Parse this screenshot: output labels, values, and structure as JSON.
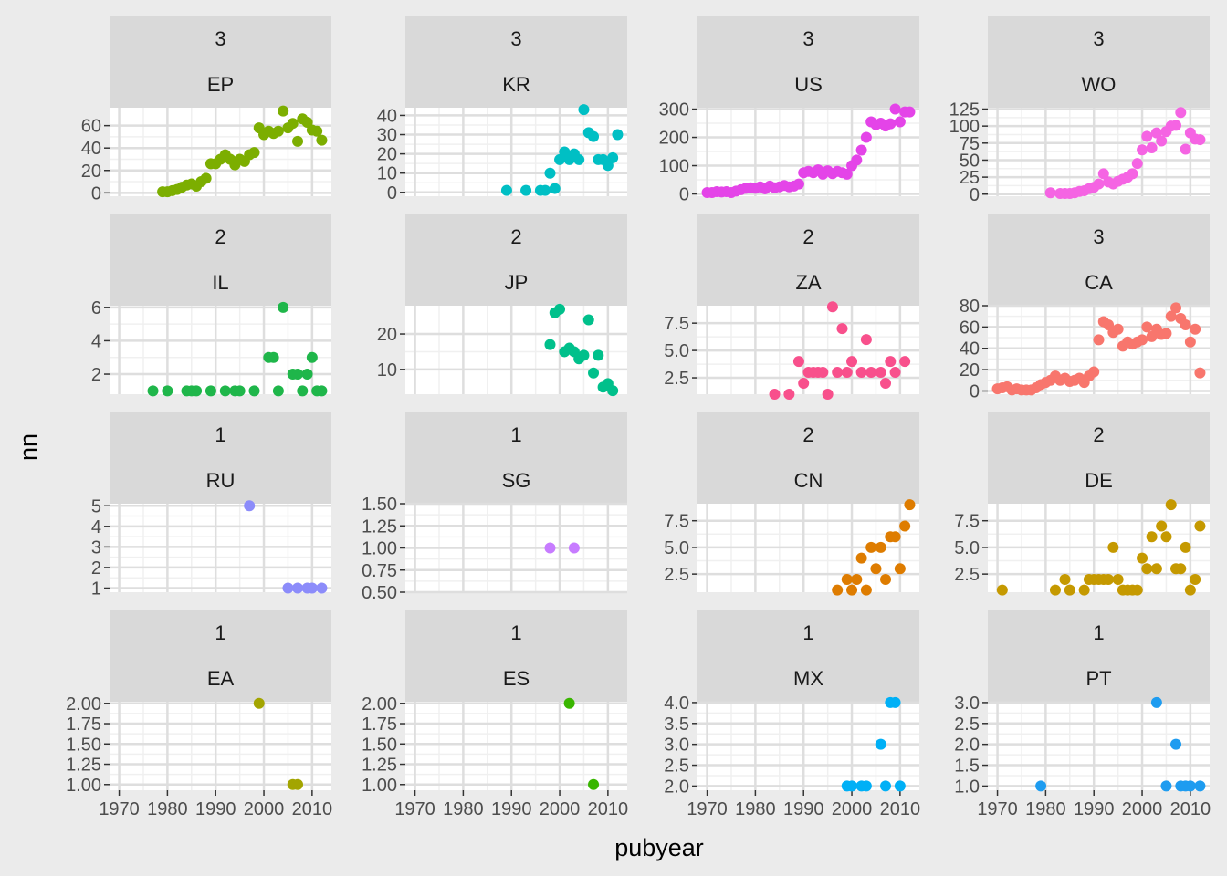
{
  "chart_data": {
    "type": "scatter",
    "xlabel": "pubyear",
    "ylabel": "nn",
    "x_ticks": [
      1970,
      1980,
      1990,
      2000,
      2010
    ],
    "xlim": [
      1968,
      2014
    ],
    "grid": true,
    "legend": "none",
    "panels": [
      {
        "strip_top": "3",
        "strip_bottom": "EP",
        "color": "#7cae00",
        "ylim": [
          -3,
          76
        ],
        "y_ticks": [
          0,
          20,
          40,
          60
        ],
        "y_tick_labels": [
          "0",
          "20",
          "40",
          "60"
        ],
        "x": [
          1979,
          1980,
          1981,
          1982,
          1983,
          1984,
          1985,
          1986,
          1987,
          1988,
          1989,
          1990,
          1991,
          1992,
          1993,
          1994,
          1995,
          1996,
          1997,
          1998,
          1999,
          2000,
          2001,
          2002,
          2003,
          2004,
          2005,
          2006,
          2007,
          2008,
          2009,
          2010,
          2011,
          2012
        ],
        "y": [
          1,
          1,
          2,
          3,
          5,
          7,
          8,
          6,
          10,
          13,
          26,
          26,
          30,
          34,
          30,
          25,
          30,
          28,
          34,
          36,
          58,
          52,
          55,
          53,
          55,
          73,
          58,
          62,
          46,
          66,
          63,
          56,
          55,
          47
        ]
      },
      {
        "strip_top": "3",
        "strip_bottom": "KR",
        "color": "#00bfc4",
        "ylim": [
          -2,
          44
        ],
        "y_ticks": [
          0,
          10,
          20,
          30,
          40
        ],
        "y_tick_labels": [
          "0",
          "10",
          "20",
          "30",
          "40"
        ],
        "x": [
          1989,
          1993,
          1996,
          1997,
          1998,
          1999,
          2000,
          2001,
          2002,
          2003,
          2004,
          2005,
          2006,
          2007,
          2008,
          2009,
          2010,
          2011,
          2012
        ],
        "y": [
          1,
          1,
          1,
          1,
          10,
          2,
          17,
          21,
          17,
          20,
          17,
          43,
          31,
          29,
          17,
          17,
          14,
          18,
          30
        ]
      },
      {
        "strip_top": "3",
        "strip_bottom": "US",
        "color": "#e444e8",
        "ylim": [
          -8,
          305
        ],
        "y_ticks": [
          0,
          100,
          200,
          300
        ],
        "y_tick_labels": [
          "0",
          "100",
          "200",
          "300"
        ],
        "x": [
          1970,
          1971,
          1972,
          1973,
          1974,
          1975,
          1976,
          1977,
          1978,
          1979,
          1980,
          1981,
          1982,
          1983,
          1984,
          1985,
          1986,
          1987,
          1988,
          1989,
          1990,
          1991,
          1992,
          1993,
          1994,
          1995,
          1996,
          1997,
          1998,
          1999,
          2000,
          2001,
          2002,
          2003,
          2004,
          2005,
          2006,
          2007,
          2008,
          2009,
          2010,
          2011,
          2012
        ],
        "y": [
          5,
          5,
          8,
          7,
          8,
          5,
          10,
          15,
          20,
          22,
          20,
          25,
          18,
          28,
          22,
          25,
          30,
          25,
          28,
          35,
          75,
          80,
          75,
          85,
          70,
          82,
          72,
          80,
          75,
          70,
          100,
          120,
          155,
          200,
          255,
          245,
          250,
          240,
          248,
          300,
          255,
          290,
          290
        ]
      },
      {
        "strip_top": "3",
        "strip_bottom": "WO",
        "color": "#f564e3",
        "ylim": [
          -3,
          127
        ],
        "y_ticks": [
          0,
          25,
          50,
          75,
          100,
          125
        ],
        "y_tick_labels": [
          "0",
          "25",
          "50",
          "75",
          "100",
          "125"
        ],
        "x": [
          1981,
          1983,
          1984,
          1985,
          1986,
          1987,
          1988,
          1989,
          1990,
          1991,
          1992,
          1993,
          1994,
          1995,
          1996,
          1997,
          1998,
          1999,
          2000,
          2001,
          2002,
          2003,
          2004,
          2005,
          2006,
          2007,
          2008,
          2009,
          2010,
          2011,
          2012
        ],
        "y": [
          2,
          1,
          1,
          1,
          2,
          4,
          5,
          8,
          10,
          15,
          30,
          18,
          15,
          19,
          22,
          25,
          30,
          45,
          65,
          85,
          68,
          90,
          78,
          92,
          100,
          101,
          120,
          66,
          90,
          81,
          80
        ]
      },
      {
        "strip_top": "2",
        "strip_bottom": "IL",
        "color": "#1fb64a",
        "ylim": [
          0.8,
          6.1
        ],
        "y_ticks": [
          2,
          4,
          6
        ],
        "y_tick_labels": [
          "2",
          "4",
          "6"
        ],
        "x": [
          1977,
          1980,
          1984,
          1985,
          1986,
          1989,
          1992,
          1994,
          1995,
          1998,
          2001,
          2002,
          2003,
          2004,
          2006,
          2007,
          2008,
          2009,
          2010,
          2011,
          2012
        ],
        "y": [
          1,
          1,
          1,
          1,
          1,
          1,
          1,
          1,
          1,
          1,
          3,
          3,
          1,
          6,
          2,
          2,
          1,
          2,
          3,
          1,
          1
        ]
      },
      {
        "strip_top": "2",
        "strip_bottom": "JP",
        "color": "#00c08b",
        "ylim": [
          3,
          28
        ],
        "y_ticks": [
          10,
          20
        ],
        "y_tick_labels": [
          "10",
          "20"
        ],
        "x": [
          1998,
          1999,
          2000,
          2001,
          2002,
          2003,
          2004,
          2005,
          2006,
          2007,
          2008,
          2009,
          2010,
          2011
        ],
        "y": [
          17,
          26,
          27,
          15,
          16,
          15,
          13,
          14,
          24,
          9,
          14,
          5,
          6,
          4
        ]
      },
      {
        "strip_top": "2",
        "strip_bottom": "ZA",
        "color": "#f8508c",
        "ylim": [
          1,
          9.1
        ],
        "y_ticks": [
          2.5,
          5.0,
          7.5
        ],
        "y_tick_labels": [
          "2.5",
          "5.0",
          "7.5"
        ],
        "x": [
          1984,
          1987,
          1989,
          1990,
          1991,
          1992,
          1993,
          1994,
          1995,
          1996,
          1997,
          1998,
          1999,
          2000,
          2002,
          2003,
          2004,
          2006,
          2007,
          2008,
          2009,
          2011
        ],
        "y": [
          1,
          1,
          4,
          2,
          3,
          3,
          3,
          3,
          1,
          9,
          3,
          7,
          3,
          4,
          3,
          6,
          3,
          3,
          2,
          4,
          3,
          4
        ]
      },
      {
        "strip_top": "3",
        "strip_bottom": "CA",
        "color": "#f8766d",
        "ylim": [
          -3,
          80
        ],
        "y_ticks": [
          0,
          20,
          40,
          60,
          80
        ],
        "y_tick_labels": [
          "0",
          "20",
          "40",
          "60",
          "80"
        ],
        "x": [
          1970,
          1971,
          1972,
          1973,
          1974,
          1975,
          1976,
          1977,
          1978,
          1979,
          1980,
          1981,
          1982,
          1983,
          1984,
          1985,
          1986,
          1987,
          1988,
          1989,
          1990,
          1991,
          1992,
          1993,
          1994,
          1995,
          1996,
          1997,
          1998,
          1999,
          2000,
          2001,
          2002,
          2003,
          2004,
          2005,
          2006,
          2007,
          2008,
          2009,
          2010,
          2011,
          2012
        ],
        "y": [
          2,
          3,
          4,
          1,
          2,
          1,
          1,
          1,
          3,
          6,
          8,
          10,
          14,
          10,
          12,
          9,
          10,
          12,
          8,
          14,
          18,
          48,
          65,
          62,
          55,
          58,
          42,
          46,
          44,
          46,
          48,
          60,
          51,
          58,
          53,
          54,
          70,
          78,
          68,
          62,
          46,
          58,
          17
        ]
      },
      {
        "strip_top": "1",
        "strip_bottom": "RU",
        "color": "#8c8cfa",
        "ylim": [
          0.8,
          5.1
        ],
        "y_ticks": [
          1,
          2,
          3,
          4,
          5
        ],
        "y_tick_labels": [
          "1",
          "2",
          "3",
          "4",
          "5"
        ],
        "x": [
          1997,
          2005,
          2007,
          2009,
          2010,
          2012
        ],
        "y": [
          5,
          1,
          1,
          1,
          1,
          1
        ]
      },
      {
        "strip_top": "1",
        "strip_bottom": "SG",
        "color": "#c77cff",
        "ylim": [
          0.5,
          1.5
        ],
        "y_ticks": [
          0.5,
          0.75,
          1.0,
          1.25,
          1.5
        ],
        "y_tick_labels": [
          "0.50",
          "0.75",
          "1.00",
          "1.25",
          "1.50"
        ],
        "x": [
          1998,
          2003
        ],
        "y": [
          1,
          1
        ]
      },
      {
        "strip_top": "2",
        "strip_bottom": "CN",
        "color": "#de7c00",
        "ylim": [
          0.8,
          9.1
        ],
        "y_ticks": [
          2.5,
          5.0,
          7.5
        ],
        "y_tick_labels": [
          "2.5",
          "5.0",
          "7.5"
        ],
        "x": [
          1997,
          1999,
          2000,
          2001,
          2002,
          2003,
          2004,
          2005,
          2006,
          2007,
          2008,
          2009,
          2010,
          2011,
          2012
        ],
        "y": [
          1,
          2,
          1,
          2,
          4,
          1,
          5,
          3,
          5,
          2,
          6,
          6,
          3,
          7,
          9
        ]
      },
      {
        "strip_top": "2",
        "strip_bottom": "DE",
        "color": "#c59900",
        "ylim": [
          0.8,
          9.1
        ],
        "y_ticks": [
          2.5,
          5.0,
          7.5
        ],
        "y_tick_labels": [
          "2.5",
          "5.0",
          "7.5"
        ],
        "x": [
          1971,
          1982,
          1984,
          1985,
          1988,
          1989,
          1990,
          1991,
          1992,
          1993,
          1994,
          1995,
          1996,
          1997,
          1998,
          1999,
          2000,
          2001,
          2002,
          2003,
          2004,
          2005,
          2006,
          2007,
          2008,
          2009,
          2010,
          2011,
          2012
        ],
        "y": [
          1,
          1,
          2,
          1,
          1,
          2,
          2,
          2,
          2,
          2,
          5,
          2,
          1,
          1,
          1,
          1,
          4,
          3,
          6,
          3,
          7,
          6,
          9,
          3,
          3,
          5,
          1,
          2,
          7
        ]
      },
      {
        "strip_top": "1",
        "strip_bottom": "EA",
        "color": "#a3a500",
        "ylim": [
          0.93,
          2.02
        ],
        "y_ticks": [
          1.0,
          1.25,
          1.5,
          1.75,
          2.0
        ],
        "y_tick_labels": [
          "1.00",
          "1.25",
          "1.50",
          "1.75",
          "2.00"
        ],
        "x": [
          1999,
          2006,
          2007
        ],
        "y": [
          2,
          1,
          1
        ]
      },
      {
        "strip_top": "1",
        "strip_bottom": "ES",
        "color": "#39b600",
        "ylim": [
          0.93,
          2.02
        ],
        "y_ticks": [
          1.0,
          1.25,
          1.5,
          1.75,
          2.0
        ],
        "y_tick_labels": [
          "1.00",
          "1.25",
          "1.50",
          "1.75",
          "2.00"
        ],
        "x": [
          2002,
          2007
        ],
        "y": [
          2,
          1
        ]
      },
      {
        "strip_top": "1",
        "strip_bottom": "MX",
        "color": "#00b0f6",
        "ylim": [
          1.9,
          4.02
        ],
        "y_ticks": [
          2.0,
          2.5,
          3.0,
          3.5,
          4.0
        ],
        "y_tick_labels": [
          "2.0",
          "2.5",
          "3.0",
          "3.5",
          "4.0"
        ],
        "x": [
          1999,
          2000,
          2002,
          2003,
          2006,
          2007,
          2008,
          2009,
          2010
        ],
        "y": [
          2,
          2,
          2,
          2,
          3,
          2,
          4,
          4,
          2
        ]
      },
      {
        "strip_top": "1",
        "strip_bottom": "PT",
        "color": "#1e9cf0",
        "ylim": [
          0.9,
          3.02
        ],
        "y_ticks": [
          1.0,
          1.5,
          2.0,
          2.5,
          3.0
        ],
        "y_tick_labels": [
          "1.0",
          "1.5",
          "2.0",
          "2.5",
          "3.0"
        ],
        "x": [
          1979,
          2003,
          2005,
          2007,
          2008,
          2009,
          2010,
          2012
        ],
        "y": [
          1,
          3,
          1,
          2,
          1,
          1,
          1,
          1
        ]
      }
    ]
  }
}
